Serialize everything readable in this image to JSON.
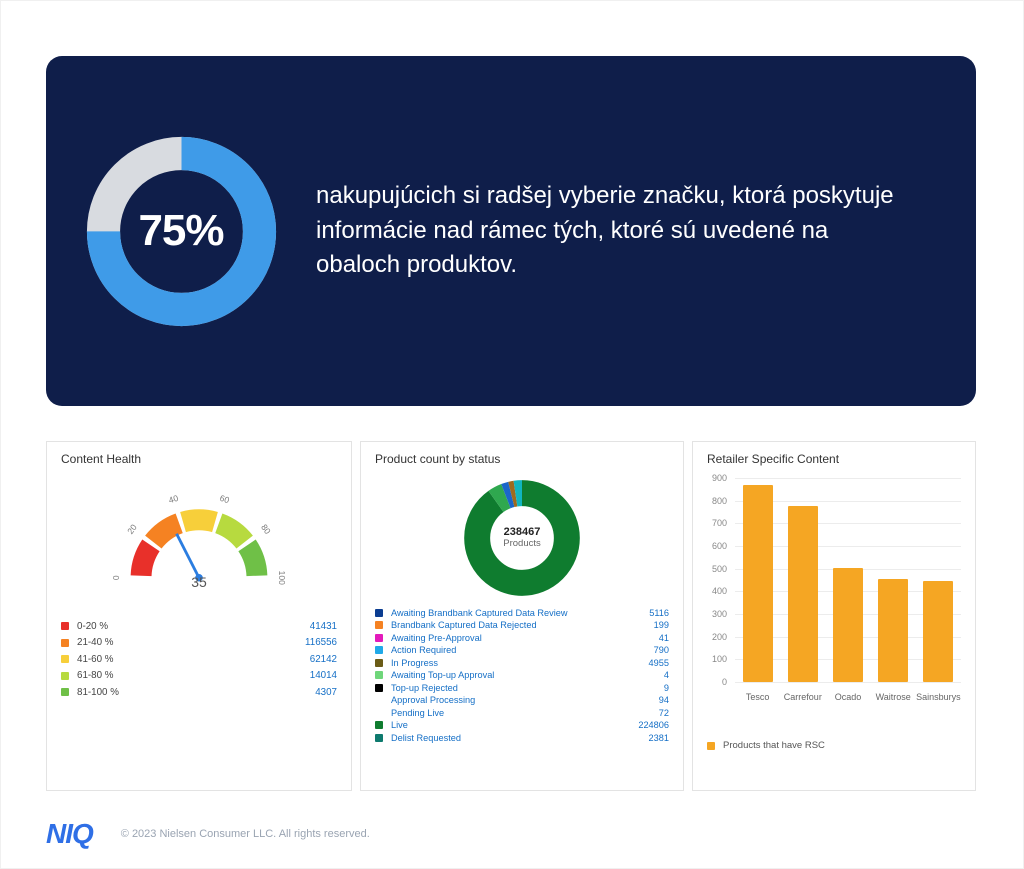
{
  "hero": {
    "background_color": "#0f1e4a",
    "percent_label": "75%",
    "percent": 75,
    "text": "nakupujúcich si radšej vyberie značku, ktorá poskytuje informácie nad rámec tých, ktoré sú uvedené na obaloch produktov.",
    "donut": {
      "track_color": "#d8dbe0",
      "fill_color": "#3f9be8",
      "text_color": "#ffffff"
    }
  },
  "content_health": {
    "title": "Content Health",
    "gauge": {
      "value_label": "35",
      "ticks": [
        "0",
        "20",
        "40",
        "60",
        "80",
        "100"
      ],
      "needle_color": "#2b7de0",
      "segments": [
        {
          "color": "#e8302a"
        },
        {
          "color": "#f58222"
        },
        {
          "color": "#f7cf3a"
        },
        {
          "color": "#b7da3f"
        },
        {
          "color": "#6fc047"
        }
      ]
    },
    "legend": [
      {
        "label": "0-20 %",
        "value": "41431",
        "color": "#e8302a"
      },
      {
        "label": "21-40 %",
        "value": "116556",
        "color": "#f58222"
      },
      {
        "label": "41-60 %",
        "value": "62142",
        "color": "#f7cf3a"
      },
      {
        "label": "61-80 %",
        "value": "14014",
        "color": "#b7da3f"
      },
      {
        "label": "81-100 %",
        "value": "4307",
        "color": "#6fc047"
      }
    ]
  },
  "product_status": {
    "title": "Product count by status",
    "center_value": "238467",
    "center_label": "Products",
    "colors": {
      "main": "#0f7c2f",
      "accent1": "#2fa84f",
      "accent2": "#20c26a",
      "accent3": "#1b66c9",
      "accent4": "#9d6a1e",
      "accent5": "#11b5bf"
    },
    "segments": [
      {
        "fraction": 0.9,
        "color": "#0f7c2f"
      },
      {
        "fraction": 0.04,
        "color": "#2fa84f"
      },
      {
        "fraction": 0.02,
        "color": "#1b66c9"
      },
      {
        "fraction": 0.015,
        "color": "#9d6a1e"
      },
      {
        "fraction": 0.025,
        "color": "#11b5bf"
      }
    ],
    "legend": [
      {
        "label": "Awaiting Brandbank Captured Data Review",
        "value": "5116",
        "color": "#0b3d91"
      },
      {
        "label": "Brandbank Captured Data Rejected",
        "value": "199",
        "color": "#f58222"
      },
      {
        "label": "Awaiting Pre-Approval",
        "value": "41",
        "color": "#e31bbb"
      },
      {
        "label": "Action Required",
        "value": "790",
        "color": "#20a9e8"
      },
      {
        "label": "In Progress",
        "value": "4955",
        "color": "#6b5c17"
      },
      {
        "label": "Awaiting Top-up Approval",
        "value": "4",
        "color": "#6fd67a"
      },
      {
        "label": "Top-up Rejected",
        "value": "9",
        "color": "#000000"
      },
      {
        "label": "Approval Processing",
        "value": "94",
        "color": ""
      },
      {
        "label": "Pending Live",
        "value": "72",
        "color": ""
      },
      {
        "label": "Live",
        "value": "224806",
        "color": "#0f7c2f"
      },
      {
        "label": "Delist Requested",
        "value": "2381",
        "color": "#0e7a6e"
      }
    ]
  },
  "retailer_content": {
    "title": "Retailer Specific Content",
    "y_max": 900,
    "y_step": 100,
    "bar_color": "#f5a623",
    "grid_color": "#ececec",
    "bars": [
      {
        "label": "Tesco",
        "value": 870
      },
      {
        "label": "Carrefour",
        "value": 775
      },
      {
        "label": "Ocado",
        "value": 505
      },
      {
        "label": "Waitrose",
        "value": 455
      },
      {
        "label": "Sainsburys",
        "value": 445
      }
    ],
    "legend_label": "Products that have RSC"
  },
  "footer": {
    "logo": "NIQ",
    "copyright": "© 2023 Nielsen Consumer LLC. All rights reserved."
  }
}
